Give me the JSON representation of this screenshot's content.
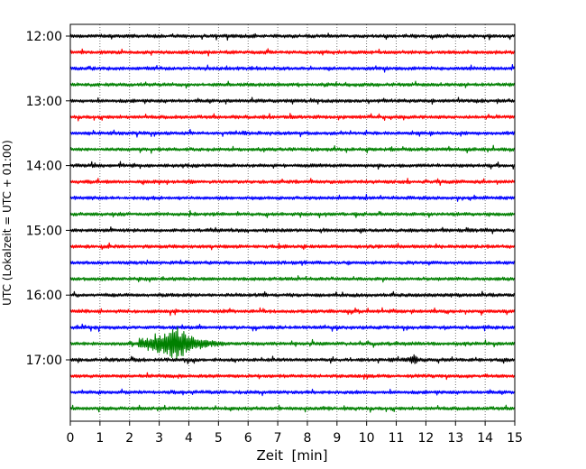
{
  "chart_data": {
    "type": "line",
    "title": "",
    "xlabel": "Zeit  [min]",
    "ylabel": "UTC (Lokalzeit = UTC + 01:00)",
    "xlim": [
      0,
      15
    ],
    "x_ticks": [
      0,
      1,
      2,
      3,
      4,
      5,
      6,
      7,
      8,
      9,
      10,
      11,
      12,
      13,
      14,
      15
    ],
    "y_tick_labels": [
      "12:00",
      "13:00",
      "14:00",
      "15:00",
      "16:00",
      "17:00"
    ],
    "grid": "vertical dotted",
    "line_minutes": 15,
    "trace_colors": [
      "#000000",
      "#ff0000",
      "#0000ff",
      "#008000"
    ],
    "traces": [
      {
        "start": "12:00",
        "color": "#000000"
      },
      {
        "start": "12:15",
        "color": "#ff0000"
      },
      {
        "start": "12:30",
        "color": "#0000ff"
      },
      {
        "start": "12:45",
        "color": "#008000"
      },
      {
        "start": "13:00",
        "color": "#000000"
      },
      {
        "start": "13:15",
        "color": "#ff0000"
      },
      {
        "start": "13:30",
        "color": "#0000ff"
      },
      {
        "start": "13:45",
        "color": "#008000"
      },
      {
        "start": "14:00",
        "color": "#000000"
      },
      {
        "start": "14:15",
        "color": "#ff0000"
      },
      {
        "start": "14:30",
        "color": "#0000ff"
      },
      {
        "start": "14:45",
        "color": "#008000"
      },
      {
        "start": "15:00",
        "color": "#000000"
      },
      {
        "start": "15:15",
        "color": "#ff0000"
      },
      {
        "start": "15:30",
        "color": "#0000ff"
      },
      {
        "start": "15:45",
        "color": "#008000"
      },
      {
        "start": "16:00",
        "color": "#000000"
      },
      {
        "start": "16:15",
        "color": "#ff0000"
      },
      {
        "start": "16:30",
        "color": "#0000ff"
      },
      {
        "start": "16:45",
        "color": "#008000",
        "events": [
          {
            "onset_min": 2.3,
            "peak_min": 3.6,
            "end_min": 5.2,
            "peak_amplitude": 1.0
          }
        ]
      },
      {
        "start": "17:00",
        "color": "#000000",
        "events": [
          {
            "onset_min": 11.4,
            "peak_min": 11.6,
            "end_min": 11.9,
            "peak_amplitude": 0.25
          }
        ]
      },
      {
        "start": "17:15",
        "color": "#ff0000"
      },
      {
        "start": "17:30",
        "color": "#0000ff"
      },
      {
        "start": "17:45",
        "color": "#008000"
      }
    ]
  }
}
